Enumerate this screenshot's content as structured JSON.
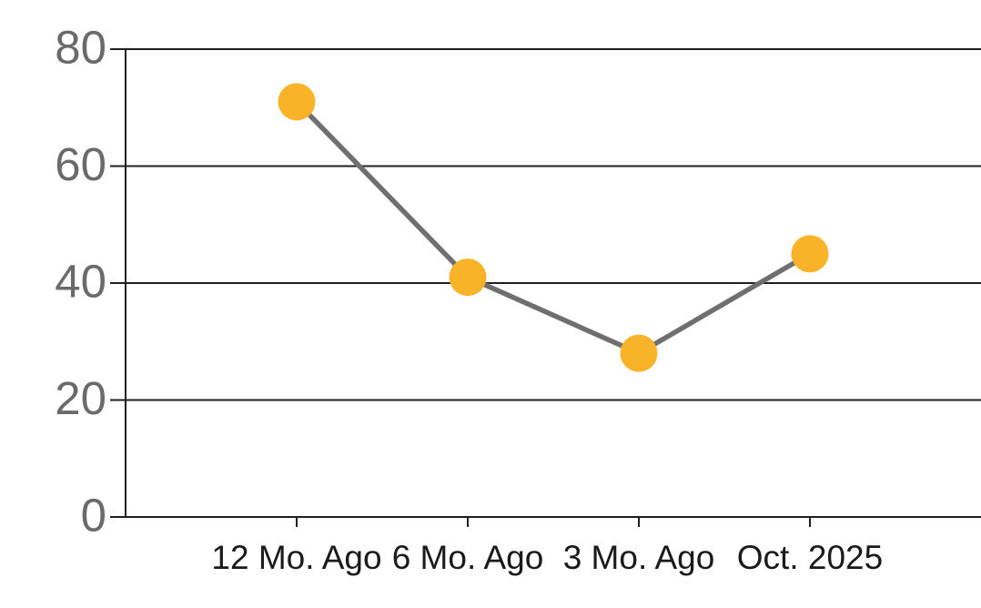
{
  "chart_data": {
    "type": "line",
    "categories": [
      "12 Mo. Ago",
      "6 Mo. Ago",
      "3 Mo. Ago",
      "Oct. 2025"
    ],
    "series": [
      {
        "name": "trend",
        "values": [
          71,
          41,
          28,
          45
        ]
      }
    ],
    "title": "",
    "xlabel": "",
    "ylabel": "",
    "ylim": [
      0,
      80
    ],
    "yticks": [
      0,
      20,
      40,
      60,
      80
    ],
    "grid": true,
    "legend": false,
    "colors": {
      "marker": "#F9B328",
      "line": "#6F6F6F",
      "grid_line": "#1F1F1F",
      "axis_line": "#1F1F1F",
      "y_tick_label": "#6A6A6A",
      "x_tick_label": "#1A1A1A",
      "background": "#FFFFFF"
    }
  }
}
